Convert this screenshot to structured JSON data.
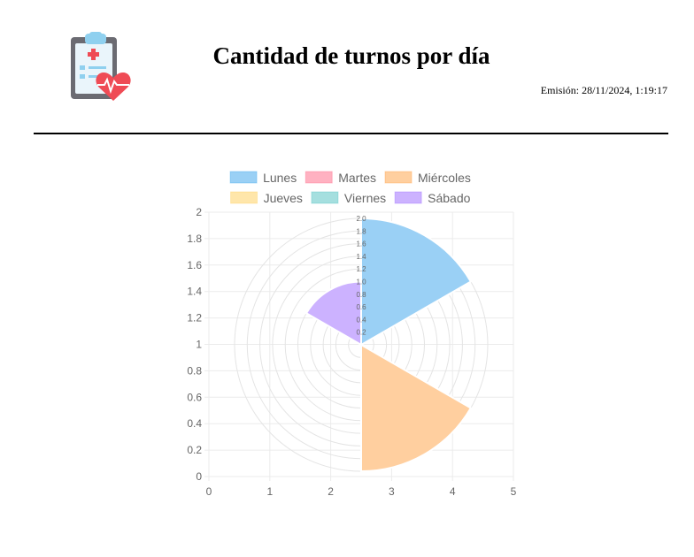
{
  "report": {
    "title": "Cantidad de turnos por día",
    "emission": "Emisión: 28/11/2024, 1:19:17"
  },
  "logo": {
    "icon": "medical-clipboard-heart-icon"
  },
  "chart_data": {
    "type": "polarArea",
    "categories": [
      "Lunes",
      "Martes",
      "Miércoles",
      "Jueves",
      "Viernes",
      "Sábado"
    ],
    "values": [
      2,
      0,
      2,
      0,
      0,
      1
    ],
    "colors": [
      "#9AD0F5",
      "#FFB1C1",
      "#FFCF9F",
      "#FFE6AA",
      "#A5DFDF",
      "#CCB2FF"
    ],
    "border_colors": [
      "#36A2EB",
      "#FF6384",
      "#FF9F40",
      "#FFCD56",
      "#4BC0C0",
      "#9966FF"
    ],
    "legend_position": "top",
    "radial_ticks": [
      "0.2",
      "0.4",
      "0.6",
      "0.8",
      "1.0",
      "1.2",
      "1.4",
      "1.6",
      "1.8",
      "2.0"
    ],
    "x_ticks": [
      "0",
      "1",
      "2",
      "3",
      "4",
      "5"
    ],
    "y_ticks": [
      "0",
      "0.2",
      "0.4",
      "0.6",
      "0.8",
      "1",
      "1.2",
      "1.4",
      "1.6",
      "1.8",
      "2"
    ],
    "xlim": [
      0,
      5
    ],
    "ylim": [
      0,
      2
    ],
    "grid": true
  }
}
